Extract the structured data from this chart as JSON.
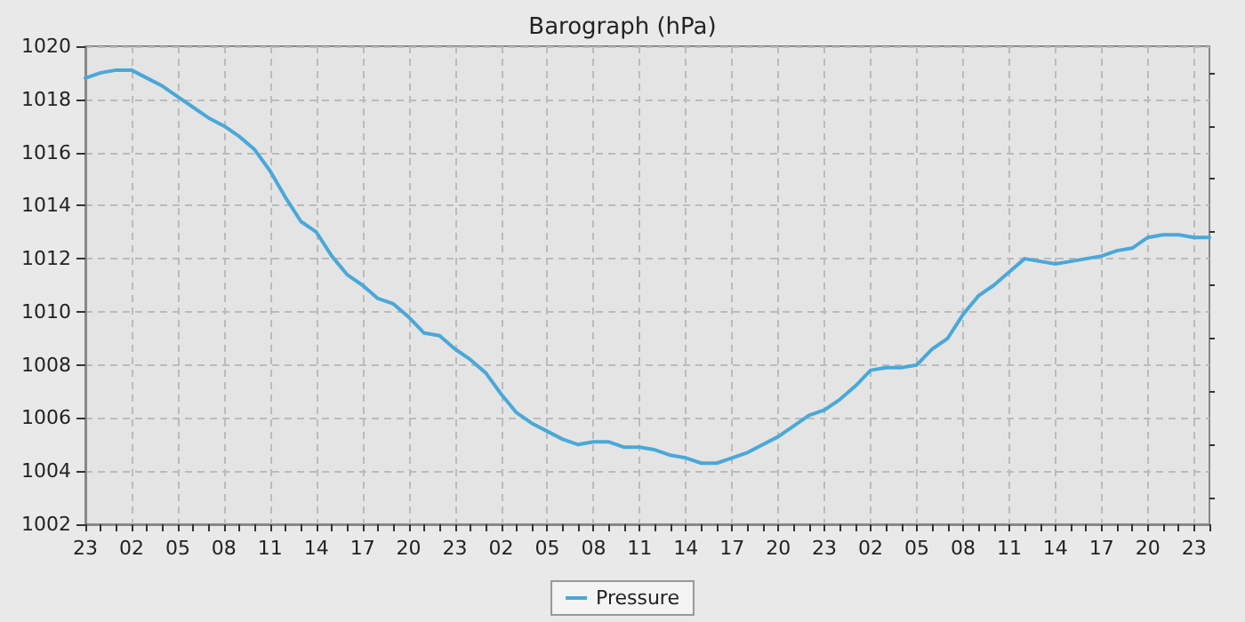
{
  "chart_data": {
    "type": "line",
    "title": "Barograph (hPa)",
    "categories": [
      "23",
      null,
      null,
      "02",
      null,
      null,
      "05",
      null,
      null,
      "08",
      null,
      null,
      "11",
      null,
      null,
      "14",
      null,
      null,
      "17",
      null,
      null,
      "20",
      null,
      null,
      "23",
      null,
      null,
      "02",
      null,
      null,
      "05",
      null,
      null,
      "08",
      null,
      null,
      "11",
      null,
      null,
      "14",
      null,
      null,
      "17",
      null,
      null,
      "20",
      null,
      null,
      "23",
      null,
      null,
      "02",
      null,
      null,
      "05",
      null,
      null,
      "08",
      null,
      null,
      "11",
      null,
      null,
      "14",
      null,
      null,
      "17",
      null,
      null,
      "20",
      null,
      null,
      "23",
      null
    ],
    "series": [
      {
        "name": "Pressure",
        "color": "#4aa8d8",
        "values": [
          1018.8,
          1019.0,
          1019.1,
          1019.1,
          1018.8,
          1018.5,
          1018.1,
          1017.7,
          1017.3,
          1017.0,
          1016.6,
          1016.1,
          1015.3,
          1014.3,
          1013.4,
          1013.0,
          1012.1,
          1011.4,
          1011.0,
          1010.5,
          1010.3,
          1009.8,
          1009.2,
          1009.1,
          1008.6,
          1008.2,
          1007.7,
          1006.9,
          1006.2,
          1005.8,
          1005.5,
          1005.2,
          1005.0,
          1005.1,
          1005.1,
          1004.9,
          1004.9,
          1004.8,
          1004.6,
          1004.5,
          1004.3,
          1004.3,
          1004.5,
          1004.7,
          1005.0,
          1005.3,
          1005.7,
          1006.1,
          1006.3,
          1006.7,
          1007.2,
          1007.8,
          1007.9,
          1007.9,
          1008.0,
          1008.6,
          1009.0,
          1009.9,
          1010.6,
          1011.0,
          1011.5,
          1012.0,
          1011.9,
          1011.8,
          1011.9,
          1012.0,
          1012.1,
          1012.3,
          1012.4,
          1012.8,
          1012.9,
          1012.9,
          1012.8,
          1012.8
        ]
      }
    ],
    "ylim": [
      1002,
      1020
    ],
    "yticks": [
      1002,
      {
        "value": 1003,
        "label": null
      },
      1004,
      {
        "value": 1005,
        "label": null
      },
      1006,
      {
        "value": 1007,
        "label": null
      },
      1008,
      {
        "value": 1009,
        "label": null
      },
      1010,
      {
        "value": 1011,
        "label": null
      },
      1012,
      {
        "value": 1013,
        "label": null
      },
      1014,
      {
        "value": 1015,
        "label": null
      },
      1016,
      {
        "value": 1017,
        "label": null
      },
      1018,
      {
        "value": 1019,
        "label": null
      },
      1020
    ],
    "grid": true,
    "legend": "bottom",
    "marker": "none",
    "line_style": "solid"
  }
}
